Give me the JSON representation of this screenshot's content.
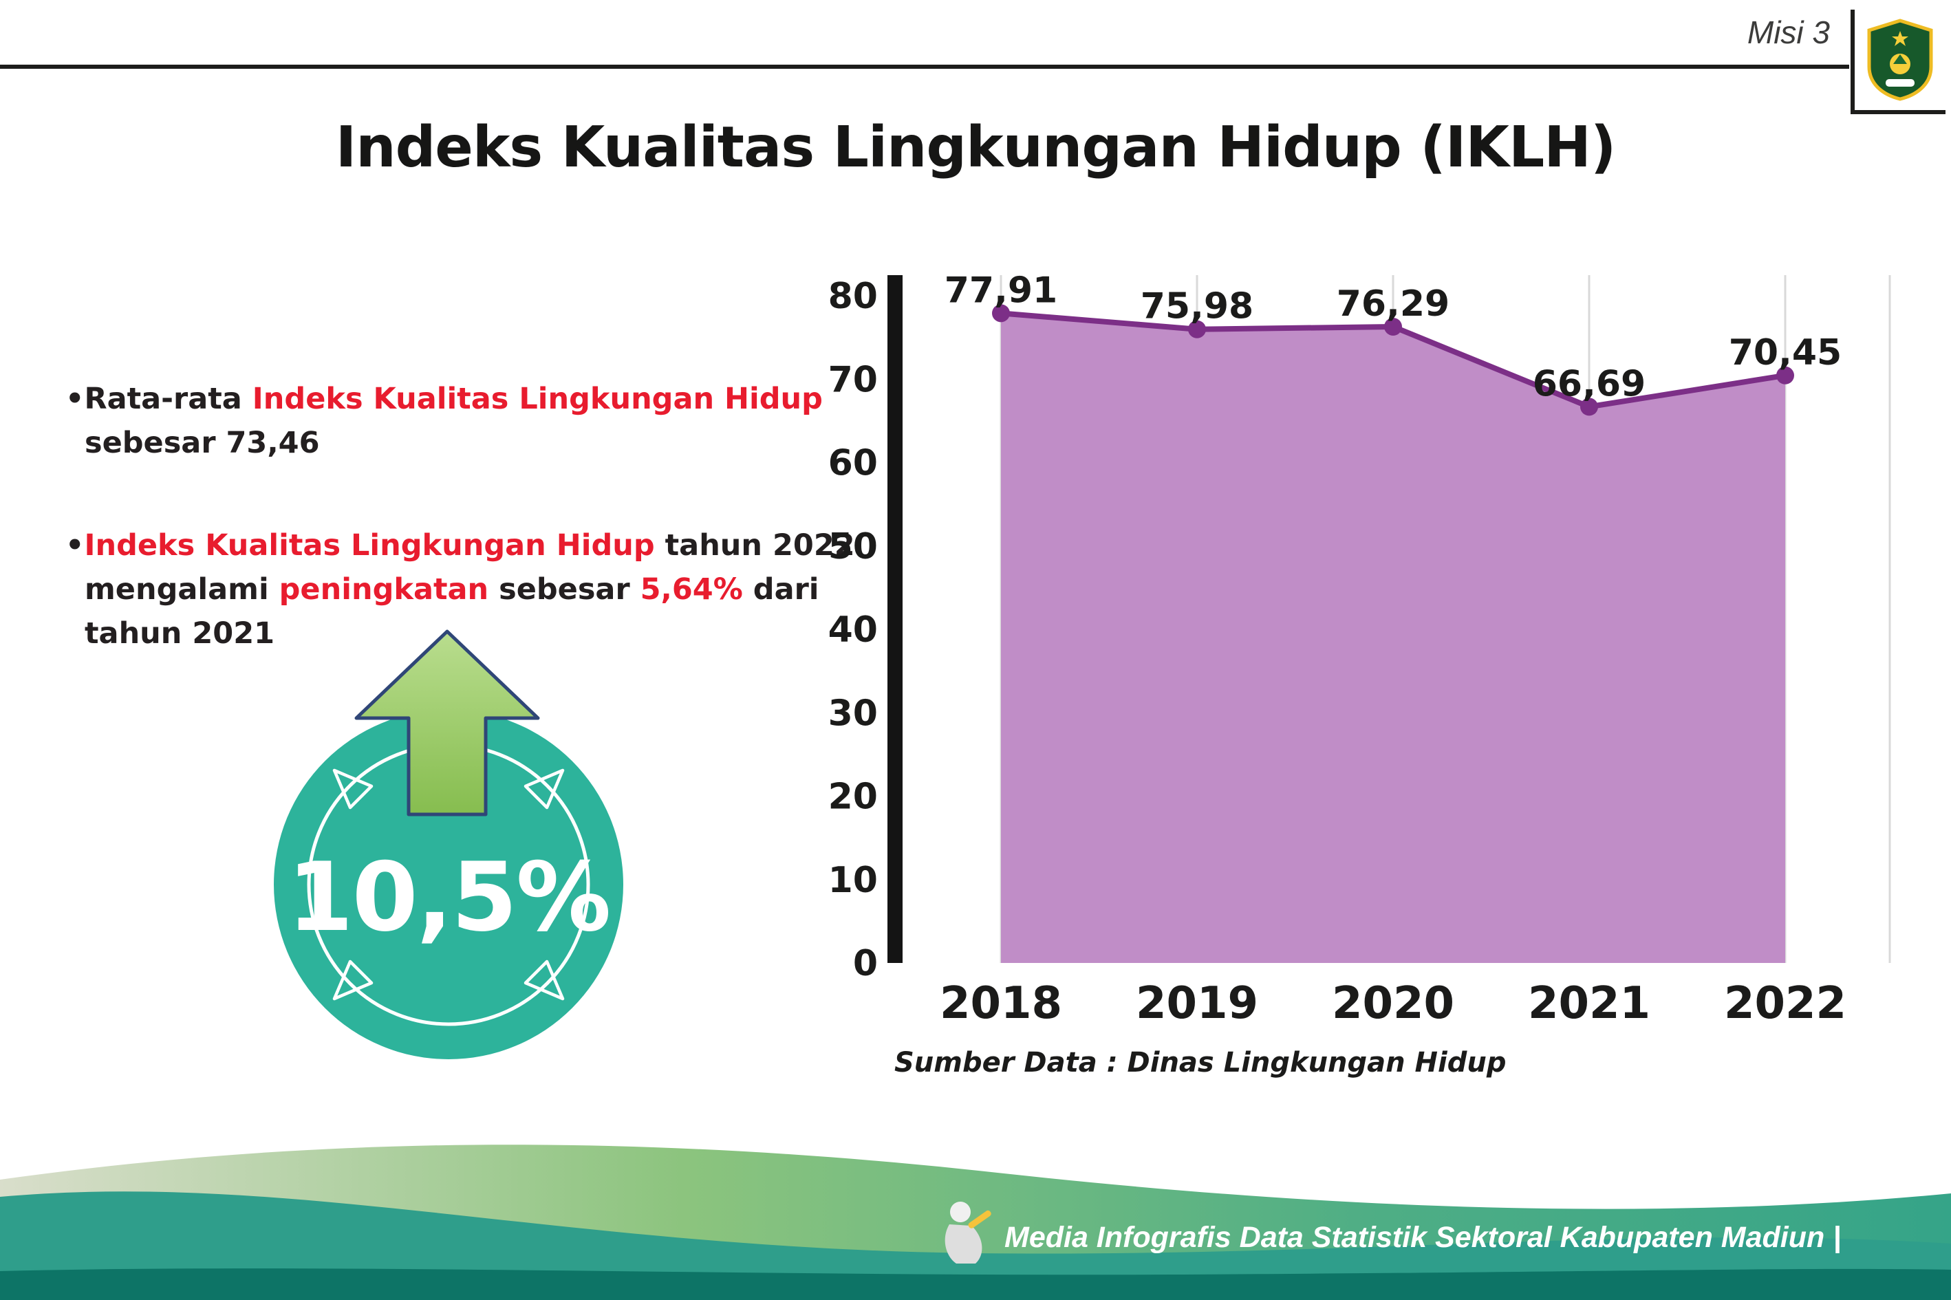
{
  "header": {
    "misi_label": "Misi 3",
    "title": "Indeks Kualitas Lingkungan Hidup (IKLH)"
  },
  "icons": {
    "logo": "kabupaten-madiun-crest",
    "arrow": "increase-up-arrow",
    "mascot": "writer-mascot"
  },
  "bullets": [
    {
      "lines": [
        {
          "parts": [
            {
              "t": "•Rata-rata ",
              "hl": false
            },
            {
              "t": "Indeks Kualitas Lingkungan Hidup",
              "hl": true
            }
          ]
        },
        {
          "parts": [
            {
              "t": "sebesar 73,46",
              "hl": false
            }
          ]
        }
      ]
    },
    {
      "lines": [
        {
          "parts": [
            {
              "t": "•",
              "hl": false
            },
            {
              "t": "Indeks Kualitas Lingkungan Hidup",
              "hl": true
            },
            {
              "t": " tahun 2022",
              "hl": false
            }
          ]
        },
        {
          "parts": [
            {
              "t": "mengalami ",
              "hl": false
            },
            {
              "t": "peningkatan",
              "hl": true
            },
            {
              "t": " sebesar ",
              "hl": false
            },
            {
              "t": "5,64%",
              "hl": true
            },
            {
              "t": " dari",
              "hl": false
            }
          ]
        },
        {
          "parts": [
            {
              "t": "tahun 2021",
              "hl": false
            }
          ]
        }
      ]
    }
  ],
  "highlight": {
    "value": "10,5%"
  },
  "chart_data": {
    "type": "area",
    "categories": [
      "2018",
      "2019",
      "2020",
      "2021",
      "2022"
    ],
    "values": [
      77.91,
      75.98,
      76.29,
      66.69,
      70.45
    ],
    "value_labels": [
      "77,91",
      "75,98",
      "76,29",
      "66,69",
      "70,45"
    ],
    "ylim": [
      0,
      80
    ],
    "ytick_step": 10,
    "ytick_labels": [
      "0",
      "10",
      "20",
      "30",
      "40",
      "50",
      "60",
      "70",
      "80"
    ],
    "grid": "vertical-light",
    "legend": "none",
    "line_color": "#7c2f87",
    "fill_color": "#c08dc7",
    "source_note": "Sumber Data : Dinas Lingkungan Hidup"
  },
  "footer": {
    "caption": "Media Infografis Data Statistik Sektoral Kabupaten Madiun |"
  },
  "colors": {
    "highlight_red": "#e81c2e",
    "circle_teal": "#2db39b",
    "arrow_green": "#9ed06b",
    "line_purple": "#7c2f87",
    "fill_purple": "#c08dc7",
    "footer_dark_teal": "#0d7466"
  }
}
